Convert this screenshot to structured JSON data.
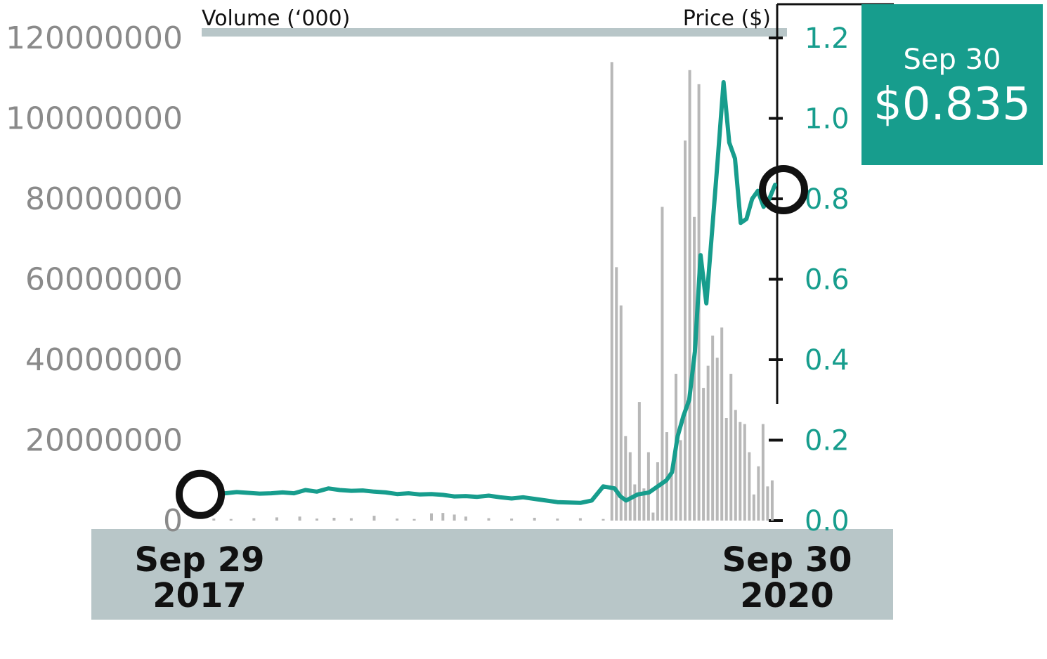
{
  "colors": {
    "price": "#179d8d",
    "volume": "#b8b8b8",
    "band": "#b8c6c8",
    "text_dark": "#111111",
    "text_grey": "#8a8a8a"
  },
  "chart_data": {
    "type": "bar",
    "title": "",
    "volume_axis": {
      "label": "Volume (‘000)",
      "ticks": [
        0,
        20000000,
        40000000,
        60000000,
        80000000,
        100000000,
        120000000
      ],
      "tick_labels": [
        "0",
        "20000000",
        "40000000",
        "60000000",
        "80000000",
        "100000000",
        "120000000"
      ],
      "ylim": [
        0,
        120000000
      ]
    },
    "price_axis": {
      "label": "Price ($)",
      "ticks": [
        0.0,
        0.2,
        0.4,
        0.6,
        0.8,
        1.0,
        1.2
      ],
      "tick_labels": [
        "0.0",
        "0.2",
        "0.4",
        "0.6",
        "0.8",
        "1.0",
        "1.2"
      ],
      "ylim": [
        0,
        1.2
      ]
    },
    "x_labels": {
      "start": [
        "Sep 29",
        "2017"
      ],
      "end": [
        "Sep 30",
        "2020"
      ]
    },
    "callout": {
      "date": "Sep 30",
      "price": "$0.835"
    },
    "series": [
      {
        "type": "line",
        "t": [
          0,
          0.02,
          0.04,
          0.06,
          0.08,
          0.1,
          0.12,
          0.14,
          0.16,
          0.18,
          0.2,
          0.22,
          0.24,
          0.26,
          0.28,
          0.3,
          0.32,
          0.34,
          0.36,
          0.38,
          0.4,
          0.42,
          0.44,
          0.46,
          0.48,
          0.5,
          0.52,
          0.54,
          0.56,
          0.58,
          0.6,
          0.62,
          0.64,
          0.66,
          0.68,
          0.7,
          0.72,
          0.73,
          0.74,
          0.76,
          0.78,
          0.79,
          0.8,
          0.81,
          0.82,
          0.83,
          0.84,
          0.85,
          0.86,
          0.87,
          0.88,
          0.89,
          0.9,
          0.91,
          0.92,
          0.93,
          0.94,
          0.95,
          0.96,
          0.97,
          0.98,
          0.99,
          1.0
        ],
        "values": [
          0.072,
          0.07,
          0.068,
          0.071,
          0.069,
          0.067,
          0.068,
          0.07,
          0.068,
          0.076,
          0.072,
          0.08,
          0.076,
          0.074,
          0.075,
          0.072,
          0.07,
          0.066,
          0.068,
          0.065,
          0.066,
          0.064,
          0.06,
          0.061,
          0.059,
          0.062,
          0.058,
          0.055,
          0.058,
          0.054,
          0.05,
          0.046,
          0.045,
          0.044,
          0.05,
          0.085,
          0.08,
          0.06,
          0.05,
          0.065,
          0.07,
          0.08,
          0.09,
          0.1,
          0.12,
          0.21,
          0.26,
          0.3,
          0.42,
          0.66,
          0.54,
          0.72,
          0.9,
          1.09,
          0.94,
          0.9,
          0.74,
          0.75,
          0.8,
          0.82,
          0.78,
          0.8,
          0.835
        ]
      },
      {
        "type": "bar",
        "t": [
          0.715,
          0.723,
          0.731,
          0.739,
          0.747,
          0.755,
          0.763,
          0.771,
          0.779,
          0.787,
          0.795,
          0.803,
          0.811,
          0.819,
          0.827,
          0.835,
          0.843,
          0.851,
          0.859,
          0.867,
          0.875,
          0.883,
          0.891,
          0.899,
          0.907,
          0.915,
          0.923,
          0.931,
          0.939,
          0.947,
          0.955,
          0.963,
          0.971,
          0.979,
          0.987,
          0.995
        ],
        "values": [
          114000000,
          63000000,
          53500000,
          21000000,
          17000000,
          9000000,
          29500000,
          8000000,
          17000000,
          2000000,
          14500000,
          78000000,
          22000000,
          12000000,
          36500000,
          20000000,
          94500000,
          112000000,
          75500000,
          108500000,
          33000000,
          38500000,
          46000000,
          40500000,
          48000000,
          25500000,
          36500000,
          27500000,
          24500000,
          24000000,
          17000000,
          6500000,
          13500000,
          24000000,
          8500000,
          10000000
        ]
      },
      {
        "type": "bar",
        "t": [
          0.02,
          0.05,
          0.09,
          0.13,
          0.17,
          0.2,
          0.23,
          0.26,
          0.3,
          0.34,
          0.37,
          0.4,
          0.42,
          0.44,
          0.46,
          0.5,
          0.54,
          0.58,
          0.62,
          0.66,
          0.7
        ],
        "values": [
          500000,
          400000,
          600000,
          800000,
          1000000,
          500000,
          700000,
          600000,
          1200000,
          500000,
          400000,
          1800000,
          1900000,
          1500000,
          1000000,
          600000,
          500000,
          700000,
          500000,
          600000,
          400000
        ]
      }
    ]
  }
}
